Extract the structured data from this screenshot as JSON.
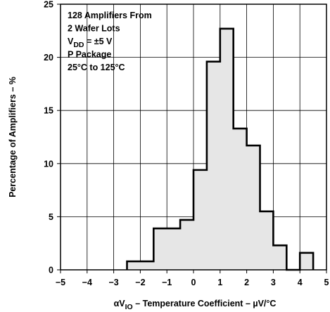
{
  "chart_data": {
    "type": "histogram",
    "title": "",
    "xlabel": "αVIO – Temperature Coefficient – µV/°C",
    "xlabel_parts": [
      "αV",
      "IO",
      " – Temperature Coefficient – µV/°C"
    ],
    "ylabel": "Percentage of Amplifiers – %",
    "xlim": [
      -5,
      5
    ],
    "ylim": [
      0,
      25
    ],
    "x_ticks": [
      -5,
      -4,
      -3,
      -2,
      -1,
      0,
      1,
      2,
      3,
      4,
      5
    ],
    "x_tick_labels": [
      "−5",
      "−4",
      "−3",
      "−2",
      "−1",
      "0",
      "1",
      "2",
      "3",
      "4",
      "5"
    ],
    "y_ticks": [
      0,
      5,
      10,
      15,
      20,
      25
    ],
    "y_tick_labels": [
      "0",
      "5",
      "10",
      "15",
      "20",
      "25"
    ],
    "grid": true,
    "bin_width": 0.5,
    "bins": [
      {
        "x0": -2.5,
        "x1": -2.0,
        "value": 0.8
      },
      {
        "x0": -2.0,
        "x1": -1.5,
        "value": 0.8
      },
      {
        "x0": -1.5,
        "x1": -1.0,
        "value": 3.9
      },
      {
        "x0": -1.0,
        "x1": -0.5,
        "value": 3.9
      },
      {
        "x0": -0.5,
        "x1": 0.0,
        "value": 4.7
      },
      {
        "x0": 0.0,
        "x1": 0.5,
        "value": 9.4
      },
      {
        "x0": 0.5,
        "x1": 1.0,
        "value": 19.6
      },
      {
        "x0": 1.0,
        "x1": 1.5,
        "value": 22.7
      },
      {
        "x0": 1.5,
        "x1": 2.0,
        "value": 13.3
      },
      {
        "x0": 2.0,
        "x1": 2.5,
        "value": 11.7
      },
      {
        "x0": 2.5,
        "x1": 3.0,
        "value": 5.5
      },
      {
        "x0": 3.0,
        "x1": 3.5,
        "value": 2.3
      },
      {
        "x0": 3.5,
        "x1": 4.0,
        "value": 0.0
      },
      {
        "x0": 4.0,
        "x1": 4.5,
        "value": 1.6
      }
    ],
    "annotation_lines": [
      {
        "parts": [
          "128 Amplifiers From"
        ]
      },
      {
        "parts": [
          "2 Wafer Lots"
        ]
      },
      {
        "parts": [
          "V",
          "DD",
          " = ±5 V"
        ]
      },
      {
        "parts": [
          "P Package"
        ]
      },
      {
        "parts": [
          "25°C to 125°C"
        ]
      }
    ],
    "fill_color": "#e6e6e6",
    "line_color": "#000000"
  }
}
